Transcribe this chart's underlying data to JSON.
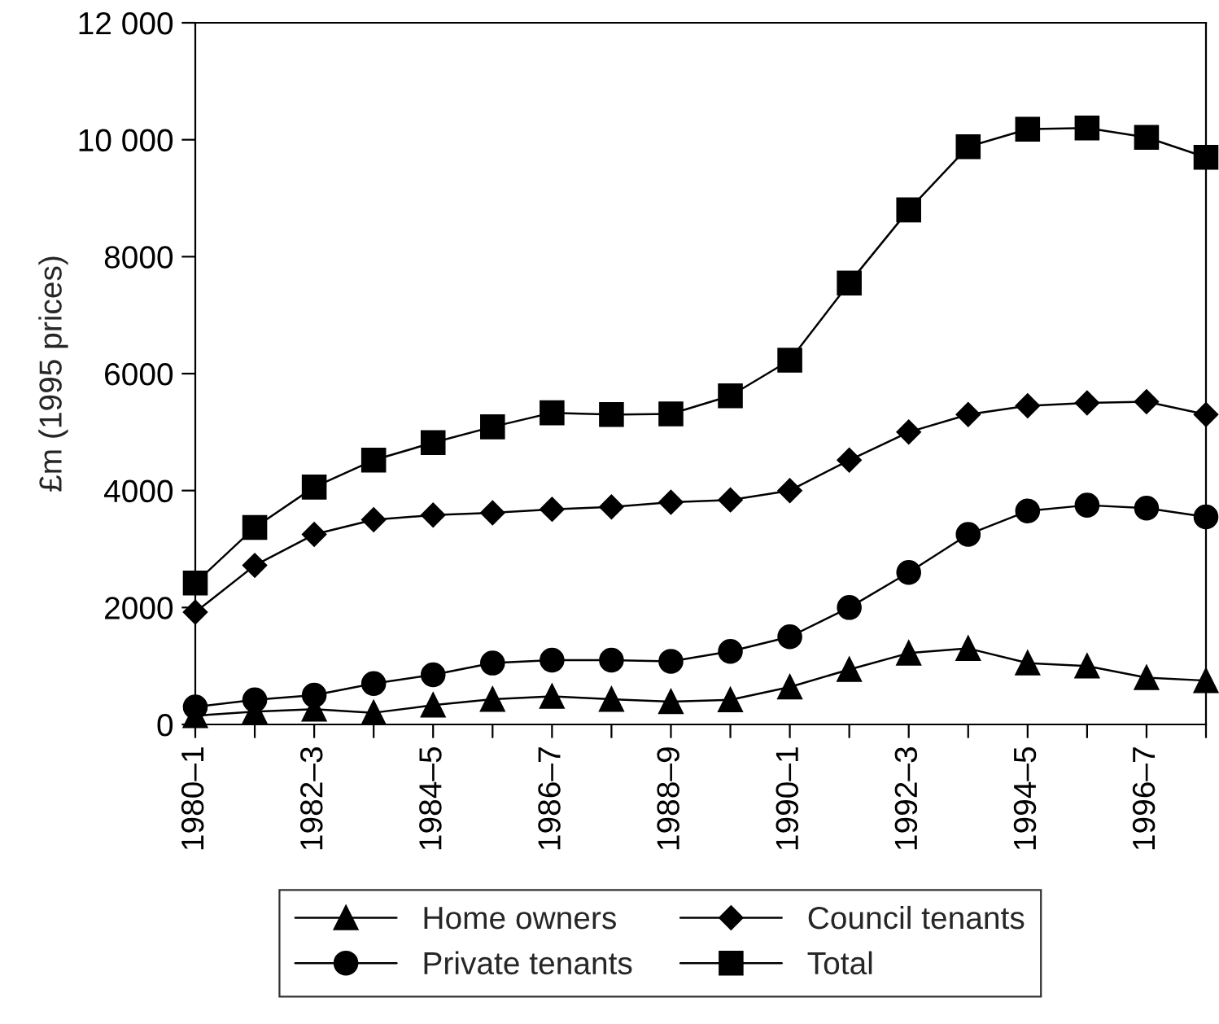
{
  "chart_data": {
    "type": "line",
    "ylabel": "£m (1995 prices)",
    "categories": [
      "1980–1",
      null,
      "1982–3",
      null,
      "1984–5",
      null,
      "1986–7",
      null,
      "1988–9",
      null,
      "1990–1",
      null,
      "1992–3",
      null,
      "1994–5",
      null,
      "1996–7",
      null
    ],
    "series": [
      {
        "name": "Home owners",
        "color": "#000000",
        "marker": "triangle",
        "values": [
          150,
          220,
          260,
          200,
          330,
          430,
          480,
          430,
          390,
          420,
          640,
          940,
          1220,
          1300,
          1050,
          1000,
          800,
          750
        ]
      },
      {
        "name": "Private tenants",
        "color": "#000000",
        "marker": "circle",
        "values": [
          300,
          420,
          500,
          700,
          850,
          1050,
          1100,
          1100,
          1080,
          1250,
          1500,
          2000,
          2600,
          3250,
          3650,
          3750,
          3700,
          3550
        ]
      },
      {
        "name": "Council tenants",
        "color": "#000000",
        "marker": "diamond",
        "values": [
          1920,
          2720,
          3250,
          3500,
          3580,
          3620,
          3680,
          3720,
          3800,
          3840,
          4000,
          4520,
          5000,
          5300,
          5450,
          5500,
          5520,
          5300
        ]
      },
      {
        "name": "Total",
        "color": "#000000",
        "marker": "square",
        "values": [
          2420,
          3370,
          4060,
          4520,
          4820,
          5090,
          5330,
          5300,
          5310,
          5620,
          6230,
          7550,
          8800,
          9880,
          10180,
          10200,
          10040,
          9700
        ]
      }
    ],
    "ylim": [
      0,
      12000
    ],
    "yticks": [
      0,
      2000,
      4000,
      6000,
      {
        "value": 8000,
        "label": "8000"
      },
      {
        "value": 10000,
        "label": "10 000"
      },
      {
        "value": 12000,
        "label": "12 000"
      }
    ],
    "grid": false,
    "legend": "bottom",
    "line_style": "solid"
  }
}
